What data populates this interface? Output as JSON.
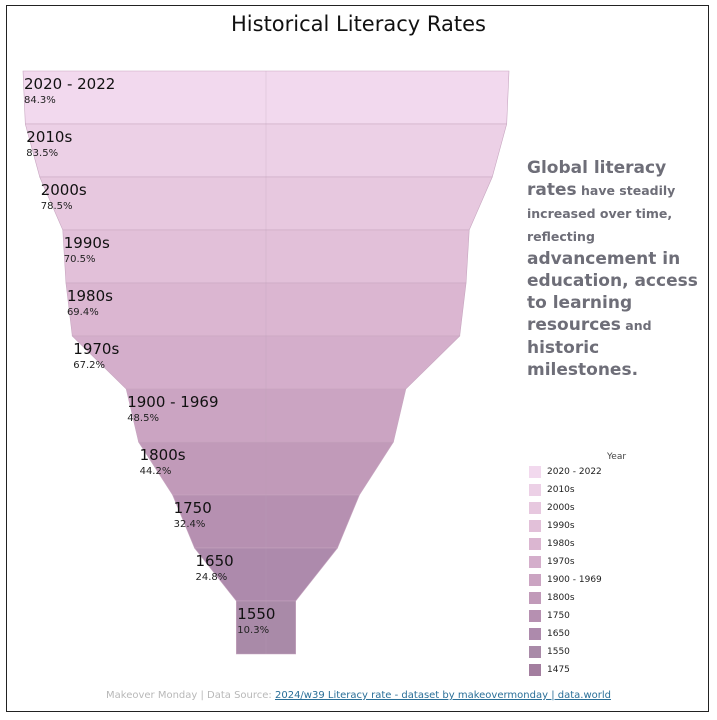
{
  "title": "Historical Literacy Rates",
  "narrative": {
    "p1": "Global literacy",
    "p2": "rates",
    "p3": " have steadily increased over time, reflecting ",
    "p4": "advancement in education, access to learning resources",
    "p5": " and ",
    "p6": "historic milestones."
  },
  "legend": {
    "title": "Year",
    "items": [
      "2020 - 2022",
      "2010s",
      "2000s",
      "1990s",
      "1980s",
      "1970s",
      "1900 - 1969",
      "1800s",
      "1750",
      "1650",
      "1550",
      "1475"
    ]
  },
  "footer": {
    "prefix": "Makeover Monday | Data Source: ",
    "link_text": "2024/w39 Literacy rate - dataset by makeovermonday | data.world"
  },
  "chart_data": {
    "type": "funnel",
    "title": "Historical Literacy Rates",
    "categories": [
      "2020 - 2022",
      "2010s",
      "2000s",
      "1990s",
      "1980s",
      "1970s",
      "1900 - 1969",
      "1800s",
      "1750",
      "1650",
      "1550",
      "1475"
    ],
    "values": [
      84.3,
      83.5,
      78.5,
      70.5,
      69.4,
      67.2,
      48.5,
      44.2,
      32.4,
      24.8,
      10.3,
      10.3
    ],
    "value_labels": [
      "84.3%",
      "83.5%",
      "78.5%",
      "70.5%",
      "69.4%",
      "67.2%",
      "48.5%",
      "44.2%",
      "32.4%",
      "24.8%",
      "10.3%",
      null
    ],
    "colors": [
      "#f2d9ee",
      "#ecd0e6",
      "#e7c8df",
      "#e2c0d9",
      "#dbb6d1",
      "#d4aecb",
      "#cba4c2",
      "#c19ab9",
      "#b690b1",
      "#ad8aac",
      "#a98aa8",
      "#a37e9f"
    ],
    "legend_title": "Year",
    "legend_position": "right"
  }
}
